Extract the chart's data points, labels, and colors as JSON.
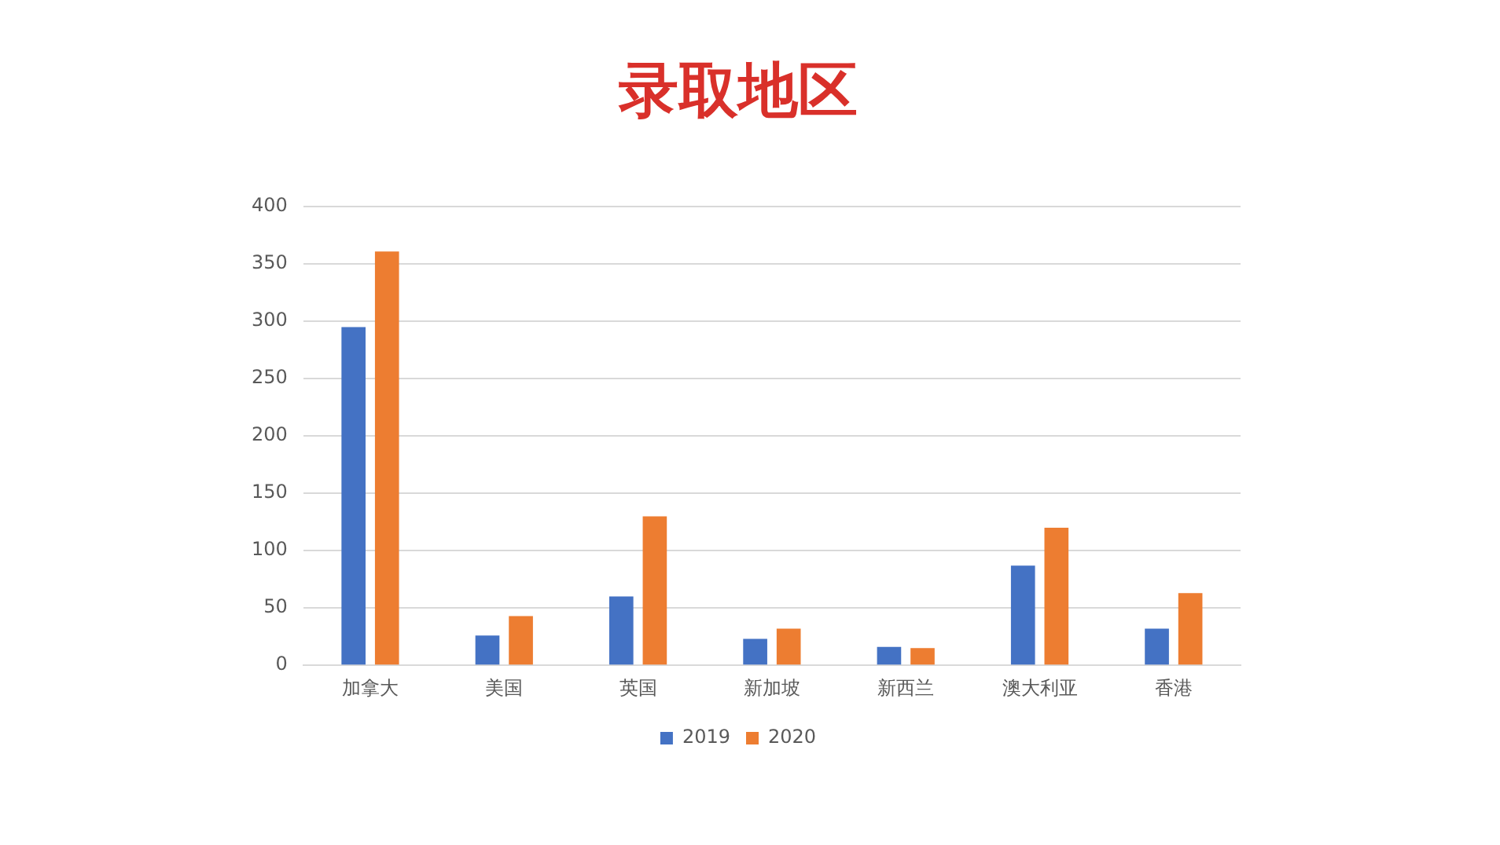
{
  "chart_data": {
    "type": "bar",
    "title": "录取地区",
    "categories": [
      "加拿大",
      "美国",
      "英国",
      "新加坡",
      "新西兰",
      "澳大利亚",
      "香港"
    ],
    "series": [
      {
        "name": "2019",
        "color": "#4472c4",
        "values": [
          295,
          26,
          60,
          23,
          16,
          87,
          32
        ]
      },
      {
        "name": "2020",
        "color": "#ed7d31",
        "values": [
          361,
          43,
          130,
          32,
          15,
          120,
          63
        ]
      }
    ],
    "ylim": [
      0,
      400
    ],
    "yticks": [
      0,
      50,
      100,
      150,
      200,
      250,
      300,
      350,
      400
    ],
    "grid": "y",
    "legend": "bottom"
  }
}
